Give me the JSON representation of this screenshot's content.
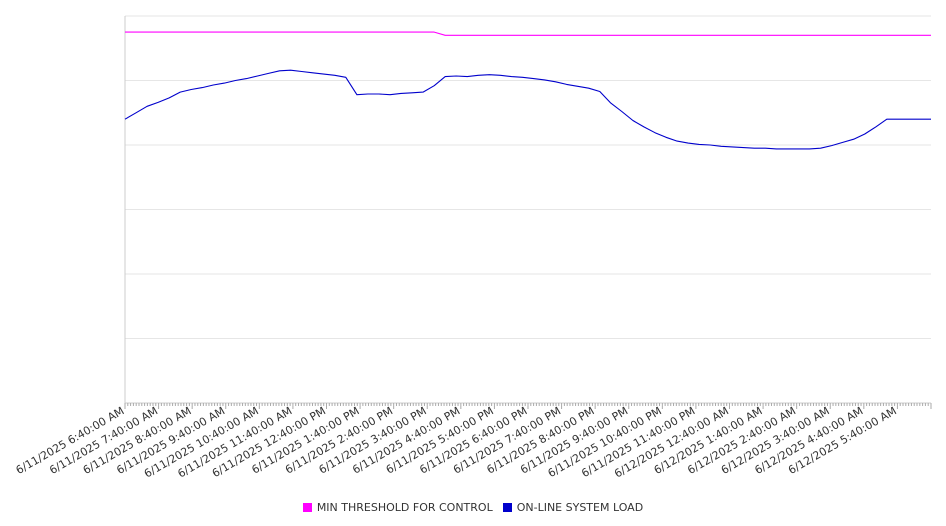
{
  "chart_data": {
    "type": "line",
    "title": "",
    "xlabel": "",
    "ylabel": "",
    "ylim": [
      0,
      6
    ],
    "y_gridlines": 6,
    "y_tick_labels_visible": false,
    "grid": "horizontal",
    "legend_position": "bottom-center",
    "x_range": [
      "6/11/2025 6:40:00 AM",
      "6/12/2025 6:40:00 AM"
    ],
    "x_tick_labels": [
      "6/11/2025 6:40:00 AM",
      "6/11/2025 7:40:00 AM",
      "6/11/2025 8:40:00 AM",
      "6/11/2025 9:40:00 AM",
      "6/11/2025 10:40:00 AM",
      "6/11/2025 11:40:00 AM",
      "6/11/2025 12:40:00 PM",
      "6/11/2025 1:40:00 PM",
      "6/11/2025 2:40:00 PM",
      "6/11/2025 3:40:00 PM",
      "6/11/2025 4:40:00 PM",
      "6/11/2025 5:40:00 PM",
      "6/11/2025 6:40:00 PM",
      "6/11/2025 7:40:00 PM",
      "6/11/2025 8:40:00 PM",
      "6/11/2025 9:40:00 PM",
      "6/11/2025 10:40:00 PM",
      "6/11/2025 11:40:00 PM",
      "6/12/2025 12:40:00 AM",
      "6/12/2025 1:40:00 AM",
      "6/12/2025 2:40:00 AM",
      "6/12/2025 3:40:00 AM",
      "6/12/2025 4:40:00 AM",
      "6/12/2025 5:40:00 AM"
    ],
    "x": [
      "6:40 AM",
      "7:00 AM",
      "7:20 AM",
      "7:40 AM",
      "8:00 AM",
      "8:20 AM",
      "8:40 AM",
      "9:00 AM",
      "9:20 AM",
      "9:40 AM",
      "10:00 AM",
      "10:20 AM",
      "10:40 AM",
      "11:00 AM",
      "11:20 AM",
      "11:40 AM",
      "12:00 PM",
      "12:20 PM",
      "12:40 PM",
      "1:00 PM",
      "1:20 PM",
      "1:40 PM",
      "1:50 PM",
      "2:00 PM",
      "2:20 PM",
      "2:40 PM",
      "3:00 PM",
      "3:20 PM",
      "3:40 PM",
      "4:00 PM",
      "4:20 PM",
      "4:40 PM",
      "5:00 PM",
      "5:20 PM",
      "5:40 PM",
      "6:00 PM",
      "6:20 PM",
      "6:40 PM",
      "7:00 PM",
      "7:20 PM",
      "7:40 PM",
      "8:00 PM",
      "8:20 PM",
      "8:40 PM",
      "9:00 PM",
      "9:20 PM",
      "9:40 PM",
      "10:00 PM",
      "10:20 PM",
      "10:40 PM",
      "11:00 PM",
      "11:20 PM",
      "11:40 PM",
      "12:00 AM",
      "12:20 AM",
      "12:40 AM",
      "1:00 AM",
      "1:20 AM",
      "1:40 AM",
      "2:00 AM",
      "2:20 AM",
      "2:40 AM",
      "3:00 AM",
      "3:20 AM",
      "3:40 AM",
      "4:00 AM",
      "4:20 AM",
      "4:40 AM",
      "5:00 AM",
      "5:20 AM",
      "5:40 AM",
      "6:00 AM",
      "6:20 AM",
      "6:40 AM"
    ],
    "series": [
      {
        "name": "MIN THRESHOLD FOR CONTROL",
        "color": "#ff00ff",
        "values": [
          5.75,
          5.75,
          5.75,
          5.75,
          5.75,
          5.75,
          5.75,
          5.75,
          5.75,
          5.75,
          5.75,
          5.75,
          5.75,
          5.75,
          5.75,
          5.75,
          5.75,
          5.75,
          5.75,
          5.75,
          5.75,
          5.75,
          5.75,
          5.75,
          5.75,
          5.75,
          5.75,
          5.75,
          5.75,
          5.7,
          5.7,
          5.7,
          5.7,
          5.7,
          5.7,
          5.7,
          5.7,
          5.7,
          5.7,
          5.7,
          5.7,
          5.7,
          5.7,
          5.7,
          5.7,
          5.7,
          5.7,
          5.7,
          5.7,
          5.7,
          5.7,
          5.7,
          5.7,
          5.7,
          5.7,
          5.7,
          5.7,
          5.7,
          5.7,
          5.7,
          5.7,
          5.7,
          5.7,
          5.7,
          5.7,
          5.7,
          5.7,
          5.7,
          5.7,
          5.7,
          5.7,
          5.7,
          5.7,
          5.7
        ]
      },
      {
        "name": "ON-LINE SYSTEM LOAD",
        "color": "#0000cc",
        "values": [
          4.4,
          4.5,
          4.6,
          4.66,
          4.73,
          4.82,
          4.86,
          4.89,
          4.93,
          4.96,
          5.0,
          5.03,
          5.07,
          5.11,
          5.15,
          5.16,
          5.14,
          5.12,
          5.1,
          5.08,
          5.05,
          4.78,
          4.79,
          4.79,
          4.78,
          4.8,
          4.81,
          4.82,
          4.92,
          5.06,
          5.07,
          5.06,
          5.08,
          5.09,
          5.08,
          5.06,
          5.05,
          5.03,
          5.01,
          4.98,
          4.94,
          4.91,
          4.88,
          4.83,
          4.65,
          4.52,
          4.38,
          4.28,
          4.19,
          4.12,
          4.06,
          4.03,
          4.01,
          4.0,
          3.98,
          3.97,
          3.96,
          3.95,
          3.95,
          3.94,
          3.94,
          3.94,
          3.94,
          3.95,
          3.99,
          4.04,
          4.09,
          4.17,
          4.28,
          4.4,
          4.4,
          4.4,
          4.4,
          4.4
        ]
      }
    ]
  },
  "legend": {
    "items": [
      {
        "label": "MIN THRESHOLD FOR CONTROL",
        "color": "#ff00ff"
      },
      {
        "label": "ON-LINE SYSTEM LOAD",
        "color": "#0000cc"
      }
    ]
  }
}
